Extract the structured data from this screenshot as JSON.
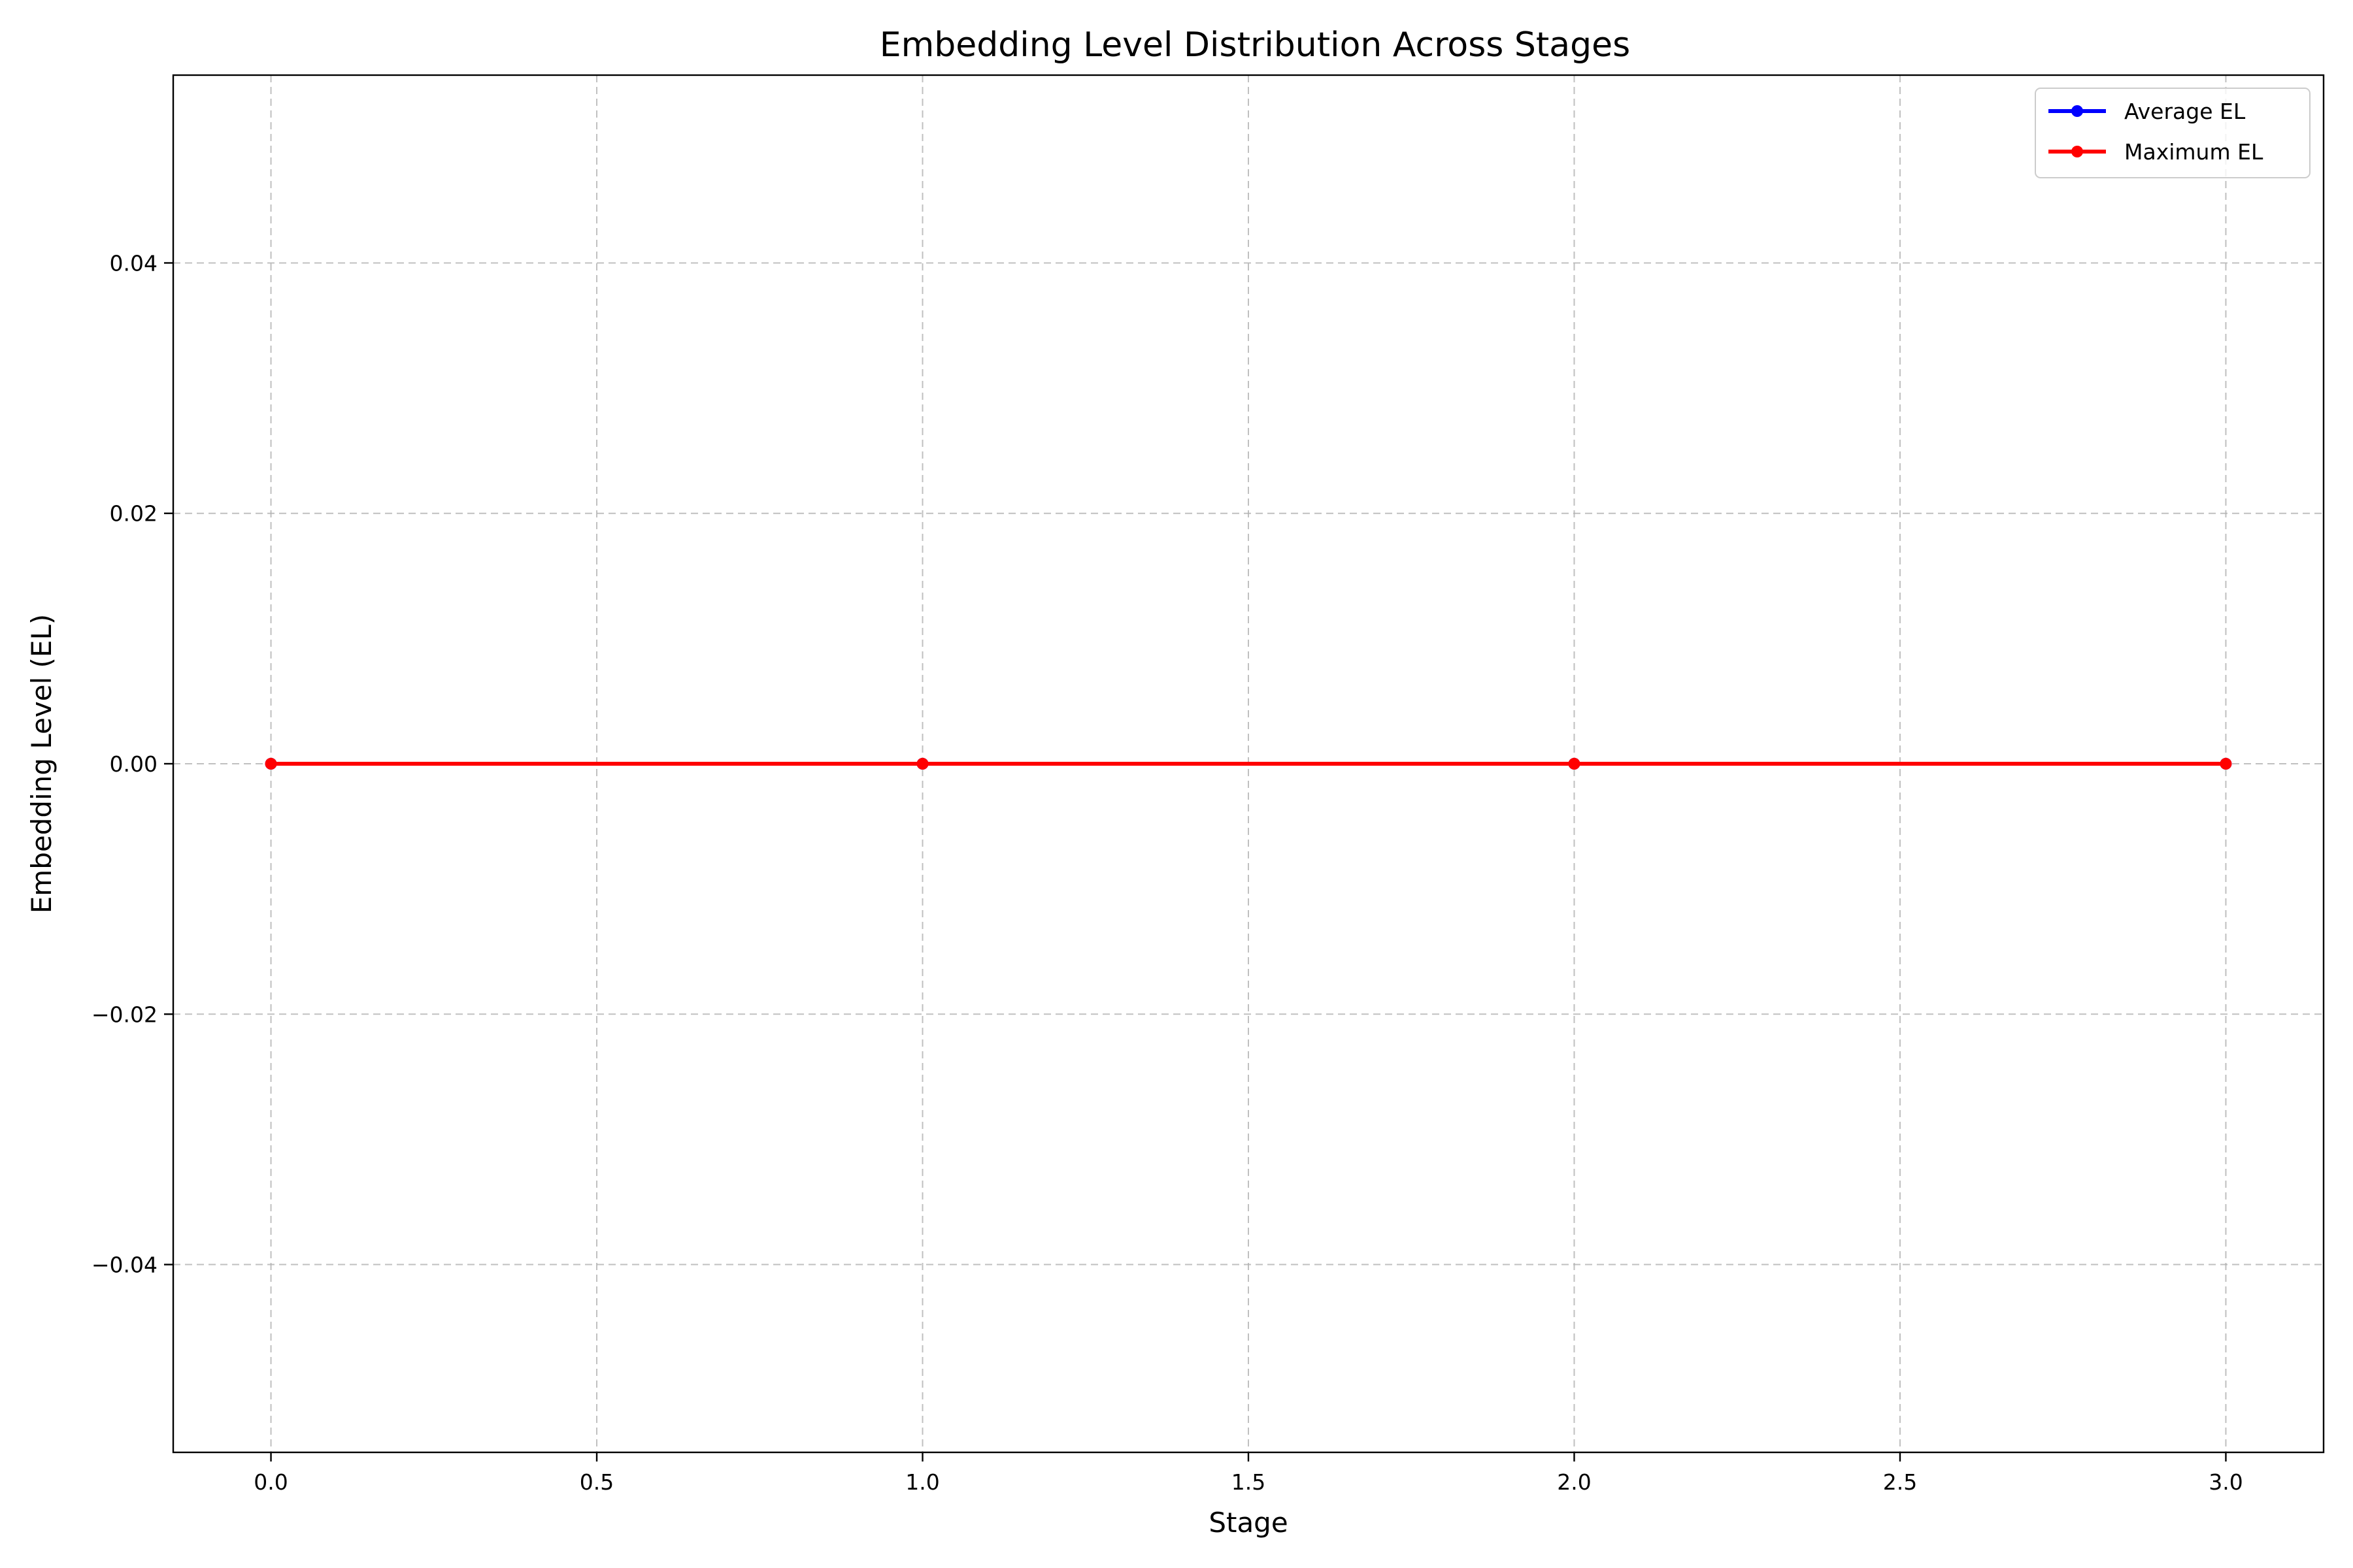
{
  "chart_data": {
    "type": "line",
    "title": "Embedding Level Distribution Across Stages",
    "xlabel": "Stage",
    "ylabel": "Embedding Level (EL)",
    "xlim": [
      -0.15,
      3.15
    ],
    "ylim": [
      -0.055,
      0.055
    ],
    "x_ticks": [
      0.0,
      0.5,
      1.0,
      1.5,
      2.0,
      2.5,
      3.0
    ],
    "x_tick_labels": [
      "0.0",
      "0.5",
      "1.0",
      "1.5",
      "2.0",
      "2.5",
      "3.0"
    ],
    "y_ticks": [
      -0.04,
      -0.02,
      0.0,
      0.02,
      0.04
    ],
    "y_tick_labels": [
      "−0.04",
      "−0.02",
      "0.00",
      "0.02",
      "0.04"
    ],
    "grid": true,
    "legend_position": "top-right",
    "x": [
      0,
      1,
      2,
      3
    ],
    "series": [
      {
        "name": "Average EL",
        "values": [
          0,
          0,
          0,
          0
        ],
        "color": "#0000ff",
        "marker": "circle"
      },
      {
        "name": "Maximum EL",
        "values": [
          0,
          0,
          0,
          0
        ],
        "color": "#ff0000",
        "marker": "circle"
      }
    ]
  }
}
